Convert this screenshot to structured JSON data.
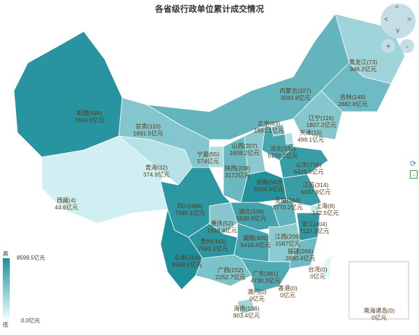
{
  "title": "各省级行政单位累计成交情况",
  "colors": {
    "low": "#e8fcfe",
    "high": "#1f8f9b",
    "label": "#5a3a1a"
  },
  "unit": "亿元",
  "provinces": [
    {
      "name": "新疆",
      "count": 588,
      "value": 7843.9
    },
    {
      "name": "西藏",
      "count": 4,
      "value": 44.6
    },
    {
      "name": "青海",
      "count": 32,
      "value": 374.9
    },
    {
      "name": "甘肃",
      "count": 110,
      "value": 1891.5
    },
    {
      "name": "内蒙古",
      "count": 327,
      "value": 3593.8
    },
    {
      "name": "黑龙江",
      "count": 73,
      "value": 946.2
    },
    {
      "name": "吉林",
      "count": 149,
      "value": 2882.8
    },
    {
      "name": "辽宁",
      "count": 116,
      "value": 1807.2
    },
    {
      "name": "北京",
      "count": 63,
      "value": 1991.1
    },
    {
      "name": "天津",
      "count": 15,
      "value": 499.1
    },
    {
      "name": "河北",
      "count": 336,
      "value": 5159.2
    },
    {
      "name": "山西",
      "count": 207,
      "value": 1658.2
    },
    {
      "name": "陕西",
      "count": 208,
      "value": 3172
    },
    {
      "name": "宁夏",
      "count": 55,
      "value": 574
    },
    {
      "name": "山东",
      "count": 738,
      "value": 6429.9
    },
    {
      "name": "河南",
      "count": 592,
      "value": 8194.9
    },
    {
      "name": "江苏",
      "count": 314,
      "value": 6437.8
    },
    {
      "name": "安徽",
      "count": 364,
      "value": 3770.2
    },
    {
      "name": "上海",
      "count": 8,
      "value": 142.5
    },
    {
      "name": "浙江",
      "count": 404,
      "value": 7127.4
    },
    {
      "name": "湖北",
      "count": 338,
      "value": 5630.8
    },
    {
      "name": "重庆",
      "count": 52,
      "value": 1818.4
    },
    {
      "name": "四川",
      "count": 488,
      "value": 7380.1
    },
    {
      "name": "贵州",
      "count": 343,
      "value": 7563.1
    },
    {
      "name": "云南",
      "count": 314,
      "value": 8599.5
    },
    {
      "name": "湖南",
      "count": 405,
      "value": 5418.4
    },
    {
      "name": "江西",
      "count": 209,
      "value": 1587
    },
    {
      "name": "福建",
      "count": 266,
      "value": 2890.4
    },
    {
      "name": "广西",
      "count": 152,
      "value": 2252.7
    },
    {
      "name": "广东",
      "count": 381,
      "value": 4730.3
    },
    {
      "name": "香港",
      "count": 0,
      "value": 0
    },
    {
      "name": "澳门",
      "count": 0,
      "value": 0
    },
    {
      "name": "海南",
      "count": 106,
      "value": 903.4
    },
    {
      "name": "台湾",
      "count": 0,
      "value": 0
    },
    {
      "name": "南海诸岛",
      "count": 0,
      "value": 0
    }
  ],
  "legend": {
    "high_label": "高",
    "low_label": "低",
    "max_text": "8599.5亿元",
    "min_text": "0.0亿元",
    "max": 8599.5,
    "min": 0
  },
  "controls": {
    "up": "^",
    "down": "v",
    "left": "<",
    "right": ">",
    "zoom_in": "+",
    "zoom_out": "-"
  },
  "toolbox": {
    "restore_icon": "refresh-icon",
    "save_icon": "save-image-icon"
  }
}
